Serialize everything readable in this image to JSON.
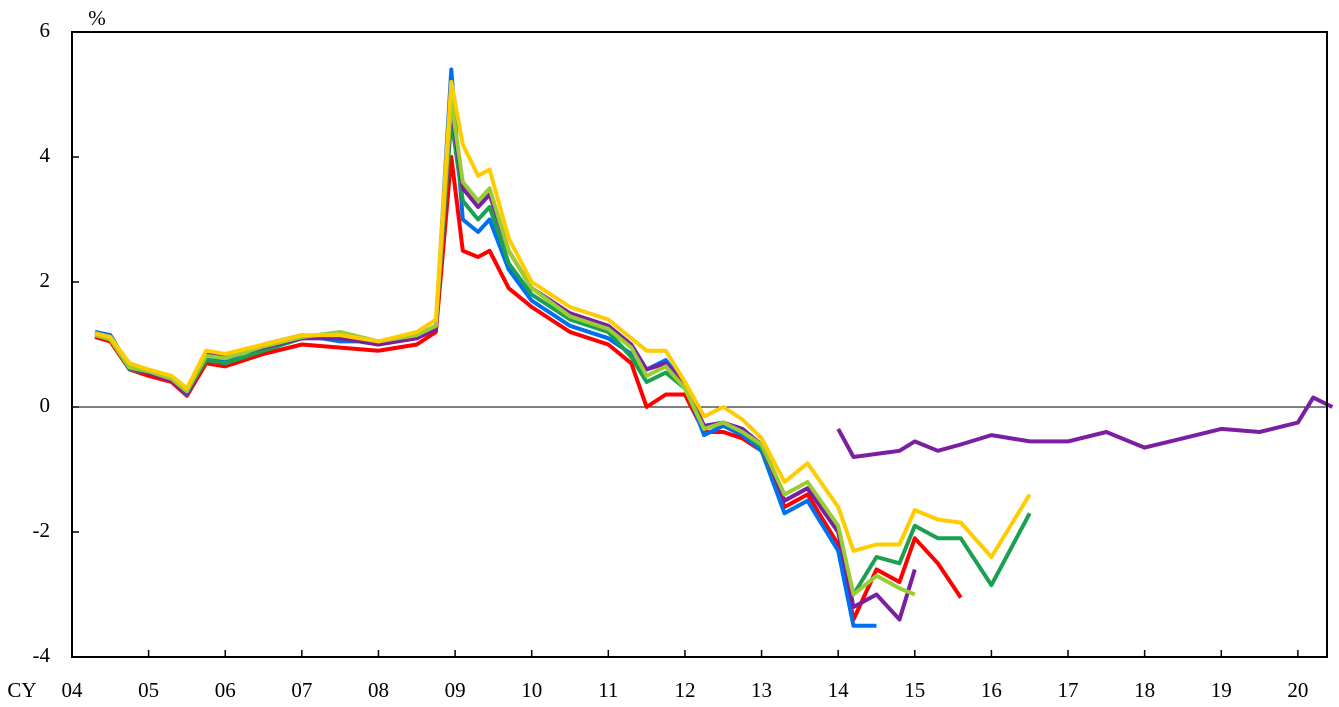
{
  "chart_data": {
    "type": "line",
    "y_label": "%",
    "x_label": "CY",
    "x": [
      2004.3,
      2004.5,
      2004.75,
      2005.0,
      2005.3,
      2005.5,
      2005.75,
      2006.0,
      2006.5,
      2007.0,
      2007.5,
      2008.0,
      2008.5,
      2008.75,
      2008.95,
      2009.1,
      2009.3,
      2009.45,
      2009.7,
      2010.0,
      2010.5,
      2011.0,
      2011.3,
      2011.5,
      2011.75,
      2012.0,
      2012.25,
      2012.5,
      2012.75,
      2013.0,
      2013.3,
      2013.6,
      2014.0,
      2014.2,
      2014.5,
      2014.8,
      2015.0,
      2015.3,
      2015.6,
      2016.0,
      2016.5,
      2017.0,
      2017.5,
      2018.0,
      2018.5,
      2019.0,
      2019.5,
      2020.0,
      2020.2,
      2020.45
    ],
    "series": [
      {
        "color": "#ff0000",
        "values": [
          1.12,
          1.05,
          0.6,
          0.5,
          0.4,
          0.18,
          0.7,
          0.65,
          0.85,
          1.0,
          0.95,
          0.9,
          1.0,
          1.2,
          4.0,
          2.5,
          2.4,
          2.5,
          1.9,
          1.6,
          1.2,
          1.0,
          0.7,
          0.0,
          0.2,
          0.2,
          -0.4,
          -0.4,
          -0.5,
          -0.7,
          -1.6,
          -1.4,
          -2.2,
          -3.4,
          -2.6,
          -2.8,
          -2.1,
          -2.5,
          -3.05,
          null,
          null,
          null,
          null,
          null,
          null,
          null,
          null,
          null,
          null,
          null
        ]
      },
      {
        "color": "#0070f0",
        "values": [
          1.2,
          1.15,
          0.65,
          0.55,
          0.45,
          0.2,
          0.8,
          0.75,
          1.0,
          1.15,
          1.05,
          1.05,
          1.1,
          1.3,
          5.4,
          3.0,
          2.8,
          3.0,
          2.2,
          1.7,
          1.3,
          1.1,
          0.85,
          0.6,
          0.75,
          0.35,
          -0.45,
          -0.3,
          -0.45,
          -0.7,
          -1.7,
          -1.5,
          -2.3,
          -3.5,
          -3.5,
          null,
          null,
          null,
          null,
          null,
          null,
          null,
          null,
          null,
          null,
          null,
          null,
          null,
          null,
          null
        ]
      },
      {
        "color": "#1aa050",
        "values": [
          1.15,
          1.1,
          0.6,
          0.55,
          0.45,
          0.25,
          0.75,
          0.7,
          0.9,
          1.1,
          1.1,
          1.0,
          1.15,
          1.3,
          4.6,
          3.3,
          3.0,
          3.2,
          2.3,
          1.8,
          1.4,
          1.2,
          0.8,
          0.4,
          0.55,
          0.3,
          -0.35,
          -0.25,
          -0.4,
          -0.65,
          -1.5,
          -1.3,
          -2.0,
          -3.0,
          -2.4,
          -2.5,
          -1.9,
          -2.1,
          -2.1,
          -2.85,
          -1.7,
          null,
          null,
          null,
          null,
          null,
          null,
          null,
          null,
          null
        ]
      },
      {
        "color": "#7b1fa2",
        "values": [
          1.15,
          1.1,
          0.62,
          0.55,
          0.42,
          0.22,
          0.85,
          0.8,
          0.95,
          1.1,
          1.1,
          1.0,
          1.1,
          1.25,
          4.8,
          3.5,
          3.2,
          3.4,
          2.5,
          1.9,
          1.5,
          1.3,
          1.0,
          0.6,
          0.7,
          0.35,
          -0.3,
          -0.25,
          -0.35,
          -0.6,
          -1.5,
          -1.3,
          -2.0,
          -3.2,
          -3.0,
          -3.4,
          -2.6,
          null,
          null,
          null,
          null,
          null,
          null,
          null,
          null,
          null,
          null,
          null,
          null,
          null
        ]
      },
      {
        "color": "#9acd32",
        "values": [
          1.15,
          1.08,
          0.63,
          0.57,
          0.45,
          0.25,
          0.82,
          0.78,
          0.97,
          1.12,
          1.2,
          1.05,
          1.15,
          1.3,
          4.9,
          3.6,
          3.3,
          3.5,
          2.5,
          1.9,
          1.45,
          1.25,
          0.95,
          0.5,
          0.65,
          0.3,
          -0.35,
          -0.25,
          -0.4,
          -0.6,
          -1.4,
          -1.2,
          -1.9,
          -3.0,
          -2.7,
          -2.9,
          -3.0,
          null,
          null,
          null,
          null,
          null,
          null,
          null,
          null,
          null,
          null,
          null,
          null,
          null
        ]
      },
      {
        "color": "#ffcc00",
        "values": [
          1.18,
          1.12,
          0.7,
          0.6,
          0.5,
          0.3,
          0.9,
          0.85,
          1.0,
          1.15,
          1.15,
          1.05,
          1.2,
          1.4,
          5.2,
          4.2,
          3.7,
          3.8,
          2.7,
          2.0,
          1.6,
          1.4,
          1.1,
          0.9,
          0.9,
          0.4,
          -0.15,
          0.0,
          -0.2,
          -0.5,
          -1.2,
          -0.9,
          -1.6,
          -2.3,
          -2.2,
          -2.2,
          -1.65,
          -1.8,
          -1.85,
          -2.4,
          -1.4,
          null,
          null,
          null,
          null,
          null,
          null,
          null,
          null,
          null
        ]
      },
      {
        "color": "#7b1fa2",
        "values": [
          null,
          null,
          null,
          null,
          null,
          null,
          null,
          null,
          null,
          null,
          null,
          null,
          null,
          null,
          null,
          null,
          null,
          null,
          null,
          null,
          null,
          null,
          null,
          null,
          null,
          null,
          null,
          null,
          null,
          null,
          null,
          null,
          -0.35,
          -0.8,
          -0.75,
          -0.7,
          -0.55,
          -0.7,
          -0.6,
          -0.45,
          -0.55,
          -0.55,
          -0.4,
          -0.65,
          -0.5,
          -0.35,
          -0.4,
          -0.25,
          0.15,
          0.0
        ]
      }
    ],
    "xlim": [
      2004,
      2020.38
    ],
    "xticks": [
      {
        "value": 2004,
        "label": "04"
      },
      {
        "value": 2005,
        "label": "05"
      },
      {
        "value": 2006,
        "label": "06"
      },
      {
        "value": 2007,
        "label": "07"
      },
      {
        "value": 2008,
        "label": "08"
      },
      {
        "value": 2009,
        "label": "09"
      },
      {
        "value": 2010,
        "label": "10"
      },
      {
        "value": 2011,
        "label": "11"
      },
      {
        "value": 2012,
        "label": "12"
      },
      {
        "value": 2013,
        "label": "13"
      },
      {
        "value": 2014,
        "label": "14"
      },
      {
        "value": 2015,
        "label": "15"
      },
      {
        "value": 2016,
        "label": "16"
      },
      {
        "value": 2017,
        "label": "17"
      },
      {
        "value": 2018,
        "label": "18"
      },
      {
        "value": 2019,
        "label": "19"
      },
      {
        "value": 2020,
        "label": "20"
      }
    ],
    "ylim": [
      -4,
      6
    ],
    "yticks": [
      -4,
      -2,
      0,
      2,
      4,
      6
    ],
    "zero_line": true
  }
}
